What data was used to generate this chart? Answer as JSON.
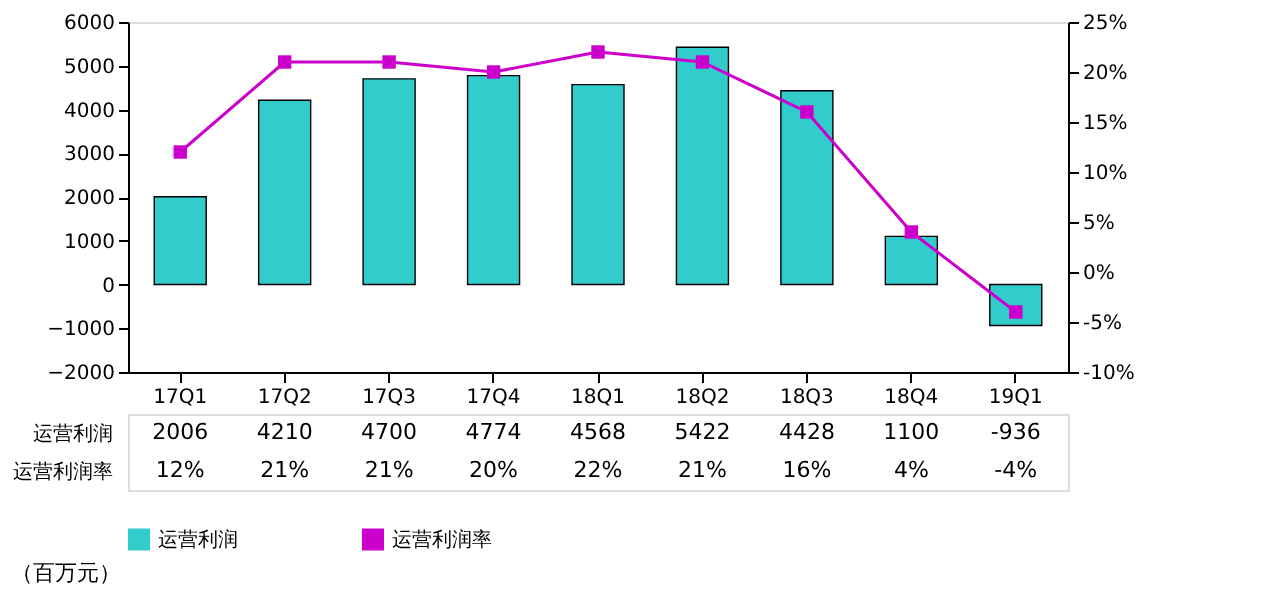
{
  "chart_data": {
    "type": "bar",
    "categories": [
      "17Q1",
      "17Q2",
      "17Q3",
      "17Q4",
      "18Q1",
      "18Q2",
      "18Q3",
      "18Q4",
      "19Q1"
    ],
    "series": [
      {
        "name": "运营利润",
        "color": "#33cccc",
        "values": [
          2006,
          4210,
          4700,
          4774,
          4568,
          5422,
          4428,
          1100,
          -936
        ],
        "value_labels": [
          "2006",
          "4210",
          "4700",
          "4774",
          "4568",
          "5422",
          "4428",
          "1100",
          "-936"
        ]
      },
      {
        "name": "运营利润率",
        "type": "line",
        "axis": "y2",
        "color": "#cc00cc",
        "marker": "square",
        "line_style": "solid",
        "values": [
          12,
          21,
          21,
          20,
          22,
          21,
          16,
          4,
          -4
        ],
        "value_labels": [
          "12%",
          "21%",
          "21%",
          "20%",
          "22%",
          "21%",
          "16%",
          "4%",
          "-4%"
        ]
      }
    ],
    "ylim": [
      -2000,
      6000
    ],
    "yticks": [
      -2000,
      -1000,
      0,
      1000,
      2000,
      3000,
      4000,
      5000,
      6000
    ],
    "y2lim": [
      -10,
      25
    ],
    "y2ticks": [
      {
        "value": -10,
        "label": "-10%"
      },
      {
        "value": -5,
        "label": "-5%"
      },
      {
        "value": 0,
        "label": "0%"
      },
      {
        "value": 5,
        "label": "5%"
      },
      {
        "value": 10,
        "label": "10%"
      },
      {
        "value": 15,
        "label": "15%"
      },
      {
        "value": 20,
        "label": "20%"
      },
      {
        "value": 25,
        "label": "25%"
      }
    ],
    "grid": false,
    "legend": "bottom",
    "annotations": [
      "（百万元）"
    ]
  }
}
